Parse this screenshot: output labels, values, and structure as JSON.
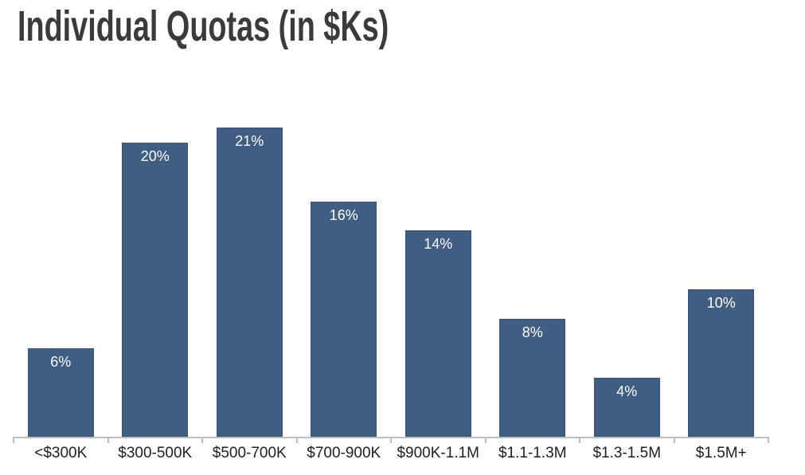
{
  "chart_data": {
    "type": "bar",
    "title": "Individual Quotas (in $Ks)",
    "categories": [
      "<$300K",
      "$300-500K",
      "$500-700K",
      "$700-900K",
      "$900K-1.1M",
      "$1.1-1.3M",
      "$1.3-1.5M",
      "$1.5M+"
    ],
    "values": [
      6,
      20,
      21,
      16,
      14,
      8,
      4,
      10
    ],
    "bar_labels": [
      "6%",
      "20%",
      "21%",
      "16%",
      "14%",
      "8%",
      "4%",
      "10%"
    ],
    "xlabel": "",
    "ylabel": "",
    "ylim": [
      0,
      24.8
    ],
    "grid": false,
    "legend": false,
    "bar_label_position": "inside-top",
    "bar_label_suffix": "%"
  },
  "colors": {
    "bar_fill": "#405E84",
    "bar_border": "#3A5577",
    "bar_label_text": "#FFFFFF",
    "axis_line": "#BFBFBF",
    "title_text": "#3B3B3B",
    "axis_label_text": "#202020",
    "background": "#FFFFFF"
  }
}
